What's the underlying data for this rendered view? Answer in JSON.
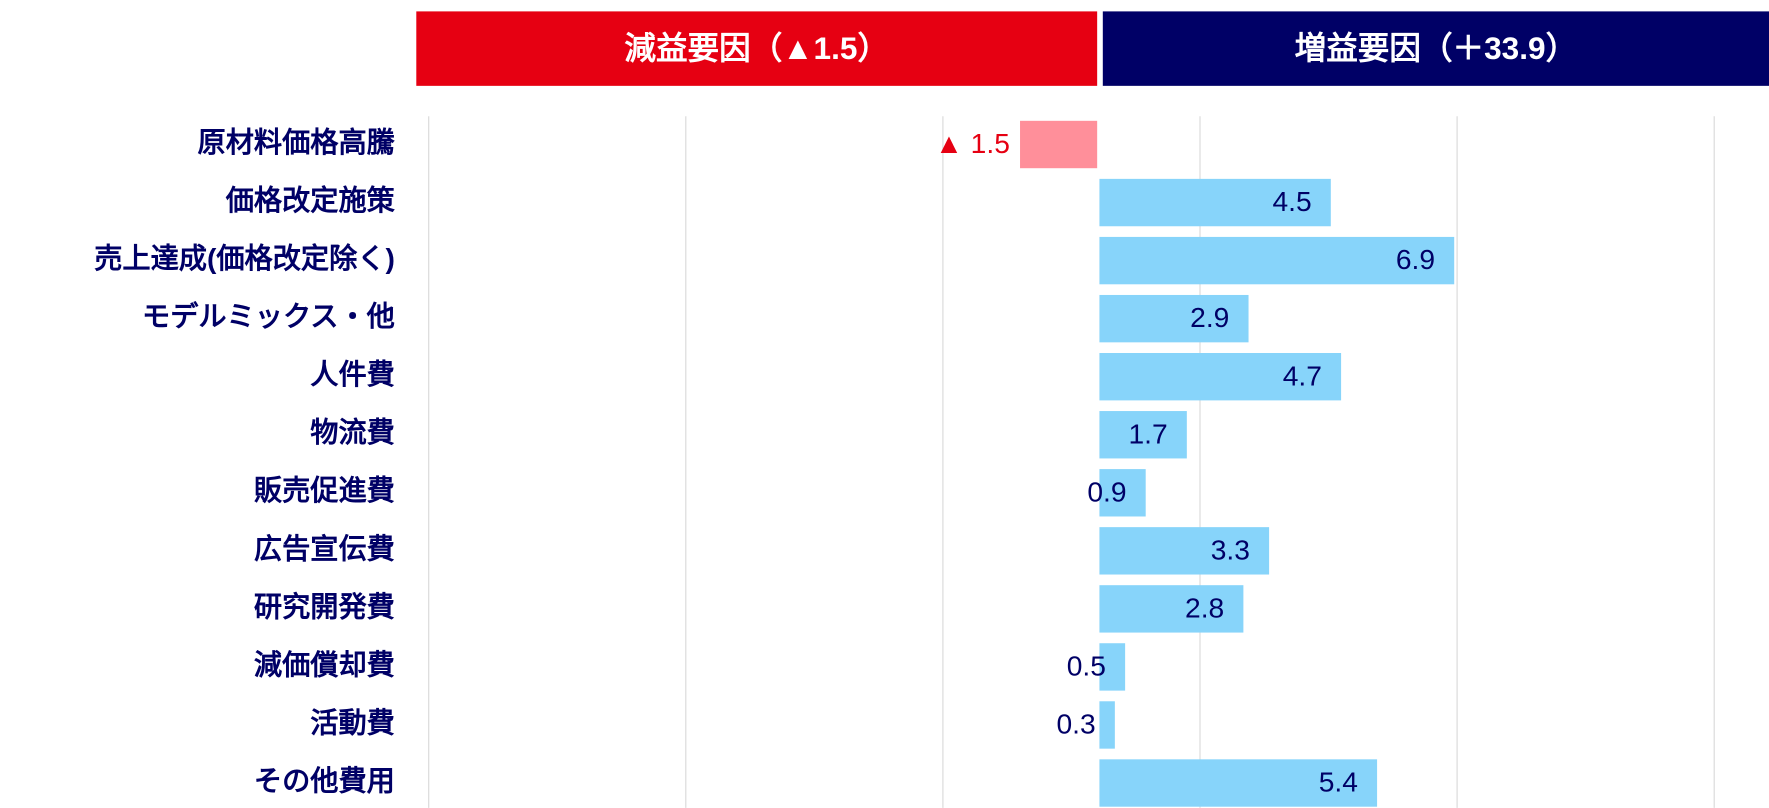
{
  "chart_data": {
    "type": "bar",
    "orientation": "horizontal",
    "headers": [
      {
        "text": "減益要因（▲1.5）",
        "color": "#e60012"
      },
      {
        "text": "増益要因（＋33.9）",
        "color": "#000066"
      }
    ],
    "categories": [
      "原材料価格高騰",
      "価格改定施策",
      "売上達成(価格改定除く)",
      "モデルミックス・他",
      "人件費",
      "物流費",
      "販売促進費",
      "広告宣伝費",
      "研究開発費",
      "減価償却費",
      "活動費",
      "その他費用"
    ],
    "values": [
      -1.5,
      4.5,
      6.9,
      2.9,
      4.7,
      1.7,
      0.9,
      3.3,
      2.8,
      0.5,
      0.3,
      5.4
    ],
    "value_labels": [
      "▲ 1.5",
      "4.5",
      "6.9",
      "2.9",
      "4.7",
      "1.7",
      "0.9",
      "3.3",
      "2.8",
      "0.5",
      "0.3",
      "5.4"
    ],
    "positive_color": "#87d4fa",
    "negative_color": "#ff8f9a",
    "positive_label_color": "#000066",
    "negative_label_color": "#e60012",
    "xlim": [
      -13,
      13
    ],
    "xticks": [
      -13,
      -8,
      -3,
      2,
      7,
      12
    ],
    "grid": true
  }
}
